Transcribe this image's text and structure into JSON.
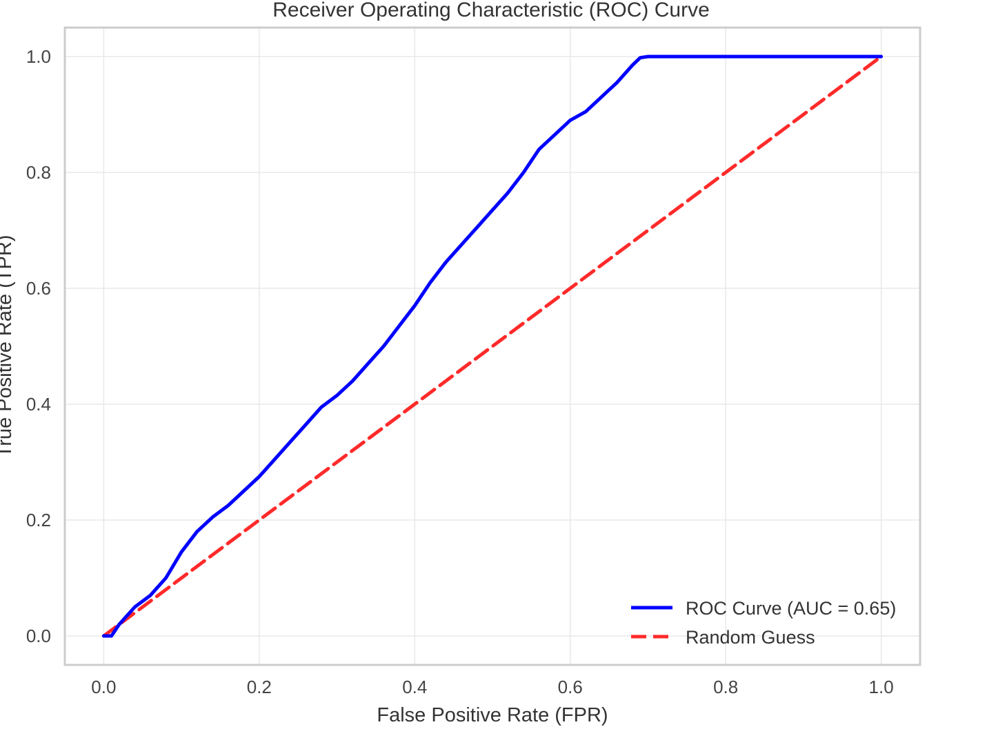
{
  "chart_data": {
    "type": "line",
    "title": "Receiver Operating Characteristic (ROC) Curve",
    "xlabel": "False Positive Rate (FPR)",
    "ylabel": "True Positive Rate (TPR)",
    "xlim": [
      -0.05,
      1.05
    ],
    "ylim": [
      -0.05,
      1.05
    ],
    "xticks": [
      0.0,
      0.2,
      0.4,
      0.6,
      0.8,
      1.0
    ],
    "yticks": [
      0.0,
      0.2,
      0.4,
      0.6,
      0.8,
      1.0
    ],
    "xtick_labels": [
      "0.0",
      "0.2",
      "0.4",
      "0.6",
      "0.8",
      "1.0"
    ],
    "ytick_labels": [
      "0.0",
      "0.2",
      "0.4",
      "0.6",
      "0.8",
      "1.0"
    ],
    "grid": true,
    "legend_position": "bottom-right",
    "series": [
      {
        "name": "ROC Curve (AUC = 0.65)",
        "color": "#0000ff",
        "style": "solid",
        "x": [
          0.0,
          0.01,
          0.02,
          0.04,
          0.06,
          0.08,
          0.1,
          0.12,
          0.14,
          0.16,
          0.18,
          0.2,
          0.22,
          0.24,
          0.26,
          0.28,
          0.3,
          0.32,
          0.34,
          0.36,
          0.38,
          0.4,
          0.42,
          0.44,
          0.46,
          0.48,
          0.5,
          0.52,
          0.54,
          0.56,
          0.58,
          0.6,
          0.62,
          0.64,
          0.66,
          0.68,
          0.69,
          0.7,
          0.72,
          0.8,
          0.9,
          1.0
        ],
        "y": [
          0.0,
          0.0,
          0.02,
          0.05,
          0.07,
          0.1,
          0.145,
          0.18,
          0.205,
          0.225,
          0.25,
          0.275,
          0.305,
          0.335,
          0.365,
          0.395,
          0.415,
          0.44,
          0.47,
          0.5,
          0.535,
          0.57,
          0.61,
          0.645,
          0.675,
          0.705,
          0.735,
          0.765,
          0.8,
          0.84,
          0.865,
          0.89,
          0.905,
          0.93,
          0.955,
          0.985,
          0.998,
          1.0,
          1.0,
          1.0,
          1.0,
          1.0
        ]
      },
      {
        "name": "Random Guess",
        "color": "#ff2a2a",
        "style": "dashed",
        "x": [
          0.0,
          1.0
        ],
        "y": [
          0.0,
          1.0
        ]
      }
    ]
  }
}
